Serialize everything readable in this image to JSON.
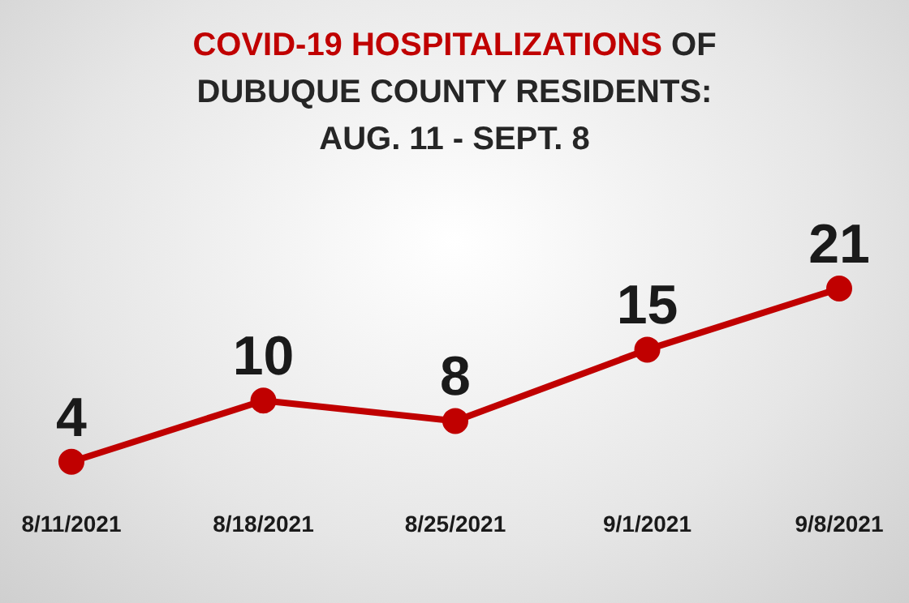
{
  "chart_data": {
    "type": "line",
    "title": "COVID-19 HOSPITALIZATIONS OF\nDUBUQUE COUNTY RESIDENTS:\nAUG. 11 - SEPT. 8",
    "categories": [
      "8/11/2021",
      "8/18/2021",
      "8/25/2021",
      "9/1/2021",
      "9/8/2021"
    ],
    "series": [
      {
        "color": "#c00000",
        "values": [
          4,
          10,
          8,
          15,
          21
        ]
      }
    ],
    "data_labels": true,
    "marker": "circle",
    "line_style": "solid",
    "tick_labels": "x"
  }
}
